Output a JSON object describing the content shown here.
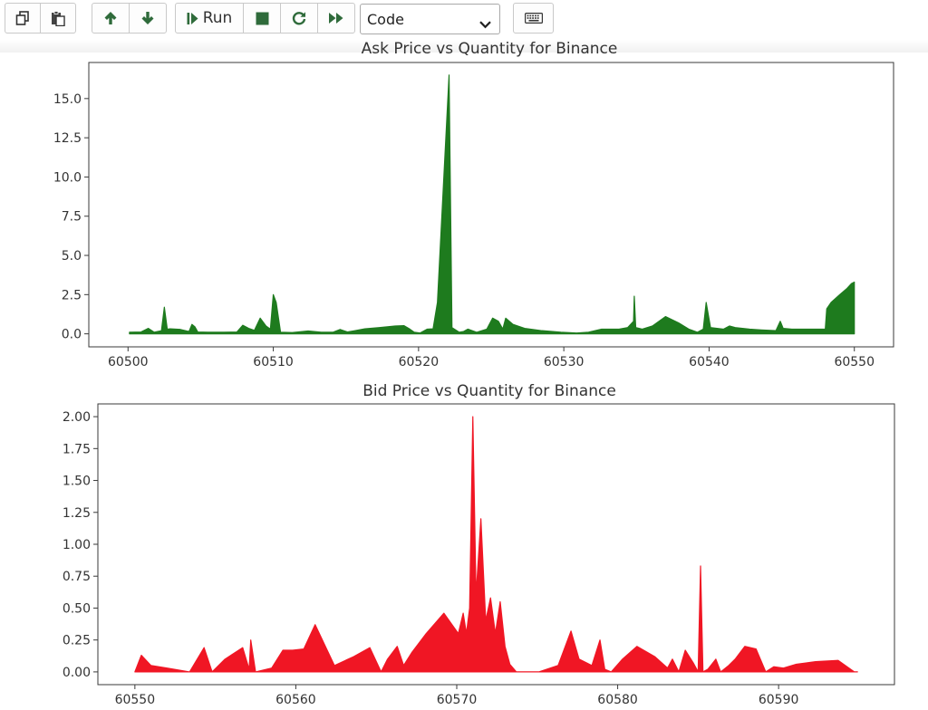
{
  "toolbar": {
    "buttons": [
      {
        "name": "copy-cells-button",
        "icon": "copy-icon"
      },
      {
        "name": "paste-cells-button",
        "icon": "paste-icon"
      },
      {
        "name": "move-up-button",
        "icon": "arrow-up-icon"
      },
      {
        "name": "move-down-button",
        "icon": "arrow-down-icon"
      },
      {
        "name": "run-button",
        "icon": "step-forward-icon",
        "label": "Run"
      },
      {
        "name": "interrupt-button",
        "icon": "stop-icon"
      },
      {
        "name": "restart-button",
        "icon": "refresh-icon"
      },
      {
        "name": "restart-run-all-button",
        "icon": "fast-forward-icon"
      },
      {
        "name": "command-palette-button",
        "icon": "keyboard-icon"
      }
    ],
    "run_label": "Run",
    "cell_type": "Code"
  },
  "chart_data": [
    {
      "type": "area",
      "title": "Ask Price vs Quantity for Binance",
      "xlabel": "",
      "ylabel": "",
      "color": "#1e7b1e",
      "xlim": [
        60497.3,
        60552.7
      ],
      "ylim": [
        -0.83,
        17.3
      ],
      "xticks": [
        60500,
        60510,
        60520,
        60530,
        60540,
        60550
      ],
      "yticks": [
        0.0,
        2.5,
        5.0,
        7.5,
        10.0,
        12.5,
        15.0
      ],
      "ytick_labels": [
        "0.0",
        "2.5",
        "5.0",
        "7.5",
        "10.0",
        "12.5",
        "15.0"
      ],
      "x": [
        60500.1,
        60500.9,
        60501.4,
        60501.8,
        60502.3,
        60502.5,
        60502.7,
        60502.9,
        60503.6,
        60504.2,
        60504.4,
        60504.6,
        60504.8,
        60505.5,
        60506.6,
        60507.5,
        60507.9,
        60508.3,
        60508.7,
        60509.1,
        60509.5,
        60509.8,
        60510.0,
        60510.2,
        60510.5,
        60511.3,
        60512.4,
        60513.3,
        60514.1,
        60514.6,
        60515.1,
        60515.6,
        60516.3,
        60517.3,
        60518.4,
        60519.0,
        60519.4,
        60519.7,
        60520.1,
        60520.6,
        60521.0,
        60521.3,
        60522.1,
        60522.3,
        60522.8,
        60523.1,
        60523.4,
        60524.0,
        60524.7,
        60525.1,
        60525.5,
        60525.8,
        60526.0,
        60526.5,
        60527.3,
        60528.5,
        60529.8,
        60530.9,
        60531.7,
        60532.6,
        60533.2,
        60533.8,
        60534.4,
        60534.8,
        60534.85,
        60534.95,
        60535.4,
        60536.1,
        60537.0,
        60537.9,
        60538.6,
        60539.2,
        60539.6,
        60539.8,
        60540.1,
        60541.0,
        60541.4,
        60541.8,
        60542.8,
        60543.6,
        60544.6,
        60544.9,
        60545.1,
        60545.7,
        60546.9,
        60548.0,
        60548.1,
        60548.4,
        60549.0,
        60549.5,
        60549.8,
        60550.0
      ],
      "y": [
        0.1,
        0.12,
        0.35,
        0.1,
        0.2,
        1.7,
        0.3,
        0.32,
        0.28,
        0.15,
        0.6,
        0.45,
        0.12,
        0.1,
        0.1,
        0.12,
        0.55,
        0.35,
        0.22,
        1.0,
        0.5,
        0.3,
        2.5,
        2.0,
        0.1,
        0.08,
        0.18,
        0.1,
        0.1,
        0.28,
        0.12,
        0.2,
        0.32,
        0.4,
        0.5,
        0.52,
        0.3,
        0.1,
        0.05,
        0.3,
        0.32,
        2.0,
        16.5,
        0.4,
        0.1,
        0.15,
        0.3,
        0.1,
        0.3,
        1.0,
        0.8,
        0.3,
        1.0,
        0.6,
        0.35,
        0.2,
        0.1,
        0.05,
        0.1,
        0.3,
        0.3,
        0.3,
        0.4,
        0.8,
        2.4,
        0.4,
        0.3,
        0.5,
        1.1,
        0.7,
        0.3,
        0.1,
        0.3,
        2.0,
        0.4,
        0.3,
        0.5,
        0.4,
        0.3,
        0.25,
        0.2,
        0.8,
        0.35,
        0.3,
        0.3,
        0.3,
        1.6,
        2.0,
        2.5,
        2.9,
        3.2,
        3.3
      ]
    },
    {
      "type": "area",
      "title": "Bid Price vs Quantity for Binance",
      "xlabel": "",
      "ylabel": "",
      "color": "#f01624",
      "xlim": [
        60547.7,
        60597.2
      ],
      "ylim": [
        -0.1,
        2.1
      ],
      "xticks": [
        60550,
        60560,
        60570,
        60580,
        60590
      ],
      "yticks": [
        0.0,
        0.25,
        0.5,
        0.75,
        1.0,
        1.25,
        1.5,
        1.75,
        2.0
      ],
      "ytick_labels": [
        "0.00",
        "0.25",
        "0.50",
        "0.75",
        "1.00",
        "1.25",
        "1.50",
        "1.75",
        "2.00"
      ],
      "x": [
        60550.0,
        60550.4,
        60551.0,
        60552.0,
        60553.4,
        60554.3,
        60554.8,
        60555.6,
        60556.7,
        60557.1,
        60557.2,
        60557.5,
        60558.5,
        60559.2,
        60559.8,
        60560.5,
        60561.2,
        60562.4,
        60563.6,
        60564.6,
        60565.3,
        60565.7,
        60566.3,
        60566.7,
        60567.2,
        60568.1,
        60569.2,
        60570.1,
        60570.4,
        60570.6,
        60570.8,
        60571.0,
        60571.2,
        60571.5,
        60571.8,
        60572.1,
        60572.4,
        60572.7,
        60573.0,
        60573.3,
        60573.7,
        60574.2,
        60575.1,
        60576.3,
        60577.1,
        60577.6,
        60578.4,
        60578.9,
        60579.2,
        60579.6,
        60580.3,
        60581.2,
        60582.3,
        60583.1,
        60583.4,
        60583.8,
        60584.2,
        60584.7,
        60585.0,
        60585.15,
        60585.3,
        60585.6,
        60586.1,
        60586.4,
        60586.9,
        60587.3,
        60587.9,
        60588.6,
        60589.2,
        60589.7,
        60590.3,
        60591.1,
        60592.3,
        60593.7,
        60594.7,
        60594.9
      ],
      "y": [
        0.0,
        0.13,
        0.05,
        0.03,
        0.0,
        0.19,
        0.0,
        0.1,
        0.19,
        0.02,
        0.25,
        0.0,
        0.03,
        0.17,
        0.17,
        0.18,
        0.37,
        0.05,
        0.12,
        0.19,
        0.0,
        0.1,
        0.2,
        0.05,
        0.15,
        0.3,
        0.46,
        0.3,
        0.46,
        0.3,
        0.5,
        2.0,
        0.6,
        1.2,
        0.4,
        0.58,
        0.3,
        0.55,
        0.2,
        0.06,
        0.0,
        0.0,
        0.0,
        0.05,
        0.32,
        0.1,
        0.05,
        0.25,
        0.02,
        0.0,
        0.1,
        0.2,
        0.12,
        0.03,
        0.1,
        0.0,
        0.17,
        0.07,
        0.0,
        0.83,
        0.0,
        0.02,
        0.1,
        0.0,
        0.05,
        0.1,
        0.2,
        0.18,
        0.0,
        0.04,
        0.03,
        0.06,
        0.08,
        0.09,
        0.0,
        0.0
      ]
    }
  ]
}
